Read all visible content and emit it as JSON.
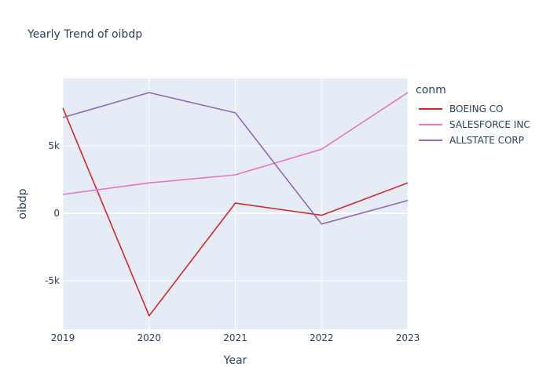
{
  "chart_data": {
    "type": "line",
    "title": "Yearly Trend of oibdp",
    "xlabel": "Year",
    "ylabel": "oibdp",
    "x": [
      "2019",
      "2020",
      "2021",
      "2022",
      "2023"
    ],
    "ylim": [
      -8600,
      10000
    ],
    "yticks": [
      {
        "value": -5000,
        "label": "-5k"
      },
      {
        "value": 0,
        "label": "0"
      },
      {
        "value": 5000,
        "label": "5k"
      }
    ],
    "legend_title": "conm",
    "legend_position": "top-right",
    "plot_background": "#e5ecf6",
    "grid": true,
    "series": [
      {
        "name": "BOEING CO",
        "color": "#d62728",
        "values": [
          7800,
          -7600,
          750,
          -150,
          2250
        ]
      },
      {
        "name": "SALESFORCE INC",
        "color": "#e377c2",
        "values": [
          1400,
          2250,
          2850,
          4750,
          8950
        ]
      },
      {
        "name": "ALLSTATE CORP",
        "color": "#9467bd",
        "values": [
          7100,
          8950,
          7450,
          -800,
          950
        ]
      }
    ]
  }
}
